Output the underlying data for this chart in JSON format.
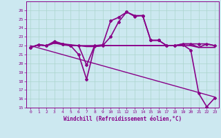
{
  "xlabel": "Windchill (Refroidissement éolien,°C)",
  "xlim": [
    -0.5,
    23.5
  ],
  "ylim": [
    15,
    27
  ],
  "yticks": [
    15,
    16,
    17,
    18,
    19,
    20,
    21,
    22,
    23,
    24,
    25,
    26
  ],
  "xticks": [
    0,
    1,
    2,
    3,
    4,
    5,
    6,
    7,
    8,
    9,
    10,
    11,
    12,
    13,
    14,
    15,
    16,
    17,
    18,
    19,
    20,
    21,
    22,
    23
  ],
  "background_color": "#cce8f0",
  "grid_color": "#aad4cc",
  "line_color": "#880088",
  "series": [
    {
      "x": [
        0,
        1,
        2,
        3,
        4,
        5,
        6,
        7,
        8,
        9,
        10,
        11,
        12,
        13,
        14,
        15,
        16,
        17,
        18,
        19,
        20,
        21,
        22,
        23
      ],
      "y": [
        21.8,
        22.1,
        22.0,
        22.3,
        22.1,
        22.0,
        22.0,
        21.9,
        21.9,
        22.0,
        22.0,
        22.0,
        22.0,
        22.0,
        22.0,
        22.0,
        22.0,
        22.0,
        22.0,
        22.0,
        22.0,
        21.8,
        21.8,
        21.8
      ],
      "linewidth": 1.2,
      "has_markers": false
    },
    {
      "x": [
        0,
        1,
        2,
        3,
        4,
        5,
        6,
        7,
        8,
        9,
        10,
        11,
        12,
        13,
        14,
        15,
        16,
        17,
        18,
        19,
        20,
        21,
        22,
        23
      ],
      "y": [
        21.8,
        22.1,
        22.0,
        22.3,
        22.2,
        22.1,
        22.0,
        22.0,
        22.0,
        22.0,
        22.0,
        22.0,
        22.0,
        22.0,
        22.0,
        22.0,
        22.0,
        22.0,
        22.0,
        22.2,
        22.2,
        21.8,
        22.2,
        22.0
      ],
      "linewidth": 1.2,
      "has_markers": false
    },
    {
      "x": [
        0,
        1,
        2,
        3,
        4,
        5,
        6,
        7,
        8,
        9,
        10,
        11,
        12,
        13,
        14,
        15,
        16,
        17,
        18,
        19,
        20,
        21,
        22,
        23
      ],
      "y": [
        21.8,
        22.1,
        22.0,
        22.5,
        22.2,
        22.0,
        22.0,
        19.8,
        22.0,
        22.1,
        24.8,
        25.2,
        25.8,
        25.4,
        25.4,
        22.6,
        22.6,
        22.0,
        22.0,
        22.2,
        22.2,
        22.2,
        22.2,
        22.0
      ],
      "linewidth": 1.2,
      "has_markers": true,
      "marker": "D",
      "markersize": 2.0
    },
    {
      "x": [
        0,
        1,
        2,
        3,
        4,
        5,
        6,
        7,
        8,
        9,
        10,
        11,
        12,
        13,
        14,
        15,
        16,
        17,
        18,
        19,
        20,
        21,
        22,
        23
      ],
      "y": [
        21.8,
        22.1,
        22.0,
        22.4,
        22.2,
        22.0,
        21.0,
        18.2,
        21.9,
        22.0,
        23.0,
        24.7,
        25.8,
        25.3,
        25.4,
        22.6,
        22.6,
        22.0,
        22.0,
        22.1,
        21.5,
        16.6,
        15.1,
        16.1
      ],
      "linewidth": 1.2,
      "has_markers": true,
      "marker": "D",
      "markersize": 2.0
    },
    {
      "x": [
        0,
        23
      ],
      "y": [
        22.0,
        16.2
      ],
      "linewidth": 1.0,
      "has_markers": false
    }
  ]
}
